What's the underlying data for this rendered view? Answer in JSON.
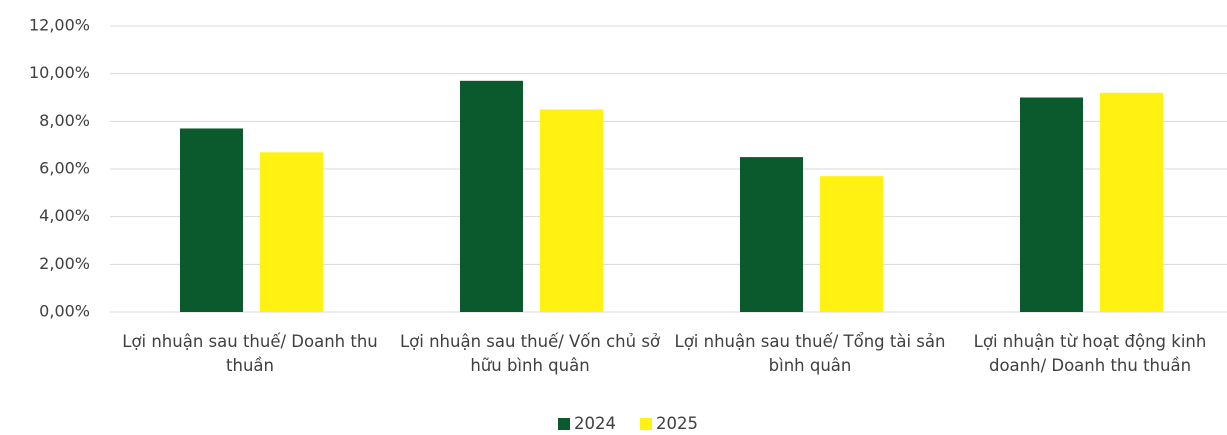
{
  "chart_data": {
    "type": "bar",
    "categories": [
      "Lợi nhuận sau thuế/ Doanh thu thuần",
      "Lợi nhuận sau thuế/ Vốn chủ sở hữu bình quân",
      "Lợi nhuận sau thuế/ Tổng tài sản bình quân",
      "Lợi nhuận từ hoạt động kinh doanh/ Doanh thu thuần"
    ],
    "series": [
      {
        "name": "2024",
        "color": "#0b5a2e",
        "values": [
          7.7,
          9.7,
          6.5,
          9.0
        ]
      },
      {
        "name": "2025",
        "color": "#fff212",
        "values": [
          6.7,
          8.5,
          5.7,
          9.2
        ]
      }
    ],
    "ylim": [
      0,
      12
    ],
    "yticks": [
      {
        "value": 0,
        "label": "0,00%"
      },
      {
        "value": 2,
        "label": "2,00%"
      },
      {
        "value": 4,
        "label": "4,00%"
      },
      {
        "value": 6,
        "label": "6,00%"
      },
      {
        "value": 8,
        "label": "8,00%"
      },
      {
        "value": 10,
        "label": "10,00%"
      },
      {
        "value": 12,
        "label": "12,00%"
      }
    ],
    "grid": true,
    "legend": "bottom"
  }
}
